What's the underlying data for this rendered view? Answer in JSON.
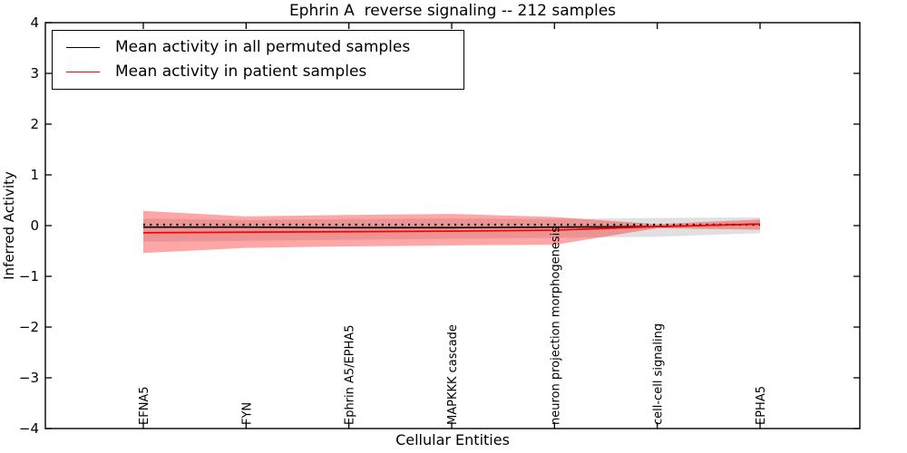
{
  "chart_data": {
    "type": "line",
    "title": "Ephrin A  reverse signaling -- 212 samples",
    "xlabel": "Cellular Entities",
    "ylabel": "Inferred Activity",
    "ylim": [
      -4,
      4
    ],
    "grid": false,
    "xtick_rotation": 90,
    "ytick_values": [
      4,
      3,
      2,
      1,
      0,
      -1,
      -2,
      -3,
      -4
    ],
    "ytick_labels": [
      "4",
      "3",
      "2",
      "1",
      "0",
      "−1",
      "−2",
      "−3",
      "−4"
    ],
    "categories": [
      "EFNA5",
      "FYN",
      "Ephrin A5/EPHA5",
      "MAPKKK cascade",
      "neuron projection morphogenesis",
      "cell-cell signaling",
      "EPHA5"
    ],
    "zero_line": {
      "style": "dotted",
      "color": "#000000",
      "value": 0
    },
    "series": [
      {
        "name": "Mean activity in all permuted samples",
        "color": "#000000",
        "values": [
          -0.03,
          -0.03,
          -0.04,
          -0.04,
          -0.03,
          -0.02,
          0.03
        ],
        "band": {
          "label": "permuted-samples-std-band",
          "color": "#999999",
          "opacity": 0.3,
          "upper": [
            0.14,
            0.11,
            0.13,
            0.14,
            0.13,
            0.15,
            0.16
          ],
          "lower": [
            -0.32,
            -0.3,
            -0.28,
            -0.26,
            -0.24,
            -0.22,
            -0.15
          ]
        }
      },
      {
        "name": "Mean activity in patient samples",
        "color": "#ff0000",
        "values": [
          -0.14,
          -0.13,
          -0.12,
          -0.11,
          -0.09,
          -0.02,
          0.03
        ],
        "band": {
          "label": "patient-samples-std-band",
          "color": "#ff2222",
          "opacity": 0.4,
          "upper": [
            0.29,
            0.18,
            0.21,
            0.23,
            0.17,
            0.03,
            0.12
          ],
          "lower": [
            -0.54,
            -0.44,
            -0.41,
            -0.39,
            -0.38,
            -0.05,
            -0.08
          ]
        }
      }
    ],
    "legend": {
      "position": "upper left",
      "entries": [
        "Mean activity in all permuted samples",
        "Mean activity in patient samples"
      ]
    }
  }
}
